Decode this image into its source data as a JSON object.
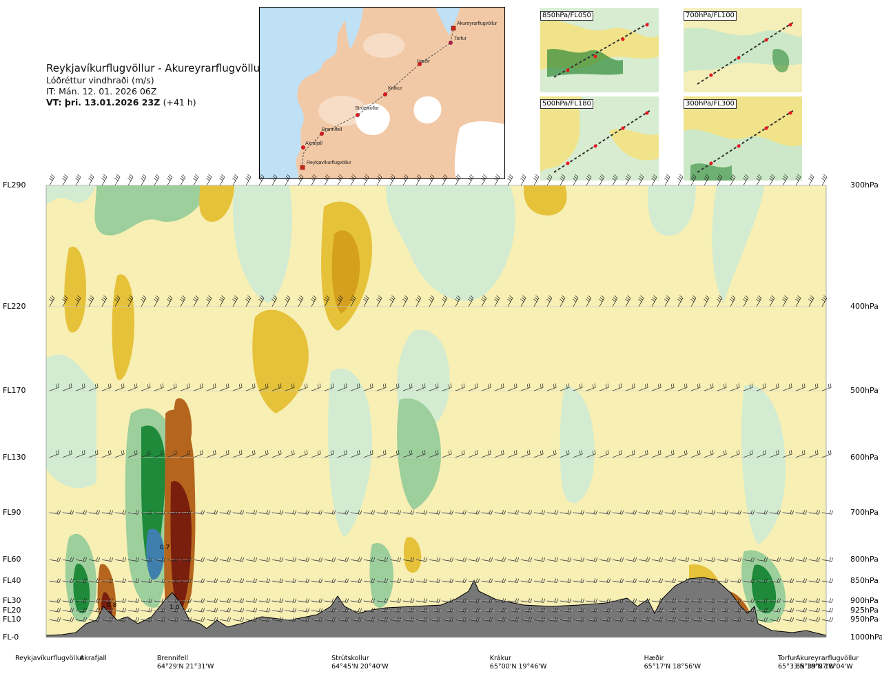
{
  "header": {
    "route": "Reykjavíkurflugvöllur - Akureyrarflugvöllur",
    "parameter": "Lóðréttur vindhraði (m/s)",
    "issue_time": "IT: Mán. 12. 01. 2026 06Z",
    "valid_time": "VT: þri. 13.01.2026 23Z",
    "lead_time": "(+41 h)"
  },
  "map": {
    "points": [
      "Akureyrarflugvöllur",
      "Torfur",
      "Hæðir",
      "Krákur",
      "Strútskollur",
      "Brennifell",
      "Akrafjall",
      "Reykjavíkurflugvöllur"
    ],
    "colors": {
      "sea": "#bfe0f5",
      "land": "#f2c9a6",
      "ice": "#ffffff",
      "route": "#555555",
      "point": "#e8141e"
    }
  },
  "thumbnails": [
    {
      "label": "850hPa/FL050"
    },
    {
      "label": "700hPa/FL100"
    },
    {
      "label": "500hPa/FL180"
    },
    {
      "label": "300hPa/FL300"
    }
  ],
  "chart_data": {
    "type": "heatmap",
    "title": "Lóðréttur vindhraði (m/s)",
    "levels_left": [
      "FL290",
      "FL220",
      "FL170",
      "FL130",
      "FL90",
      "FL60",
      "FL40",
      "FL30",
      "FL20",
      "FL10",
      "FL-0"
    ],
    "levels_right": [
      "300hPa",
      "400hPa",
      "500hPa",
      "600hPa",
      "700hPa",
      "800hPa",
      "850hPa",
      "900hPa",
      "925hPa",
      "950hPa",
      "1000hPa"
    ],
    "pressure_hpa": [
      300,
      400,
      500,
      600,
      700,
      800,
      850,
      900,
      925,
      950,
      1000
    ],
    "stations": [
      {
        "name": "Reykjavíkurflugvöllur",
        "coord": ""
      },
      {
        "name": "Akrafjall",
        "coord": ""
      },
      {
        "name": "Brennifell",
        "coord": "64°29'N 21°31'W"
      },
      {
        "name": "Strútskollur",
        "coord": "64°45'N 20°40'W"
      },
      {
        "name": "Krákur",
        "coord": "65°00'N 19°46'W"
      },
      {
        "name": "Hæðir",
        "coord": "65°17'N 18°56'W"
      },
      {
        "name": "Torfur",
        "coord": "65°33'N 18°07'W"
      },
      {
        "name": "Akureyrarflugvöllur",
        "coord": "65°39'N 18°04'W"
      }
    ],
    "data_labels": [
      "0.7",
      "0.8",
      "1.0"
    ],
    "colors": {
      "strong_down": "#7a1f0e",
      "down": "#b5651d",
      "weak_down": "#e6c23a",
      "neutral": "#f7efb4",
      "weak_up": "#d3ecd1",
      "up": "#9ccf9c",
      "strong_up": "#1e8a3a",
      "max_up": "#3f7fae",
      "terrain": "#777777"
    }
  }
}
